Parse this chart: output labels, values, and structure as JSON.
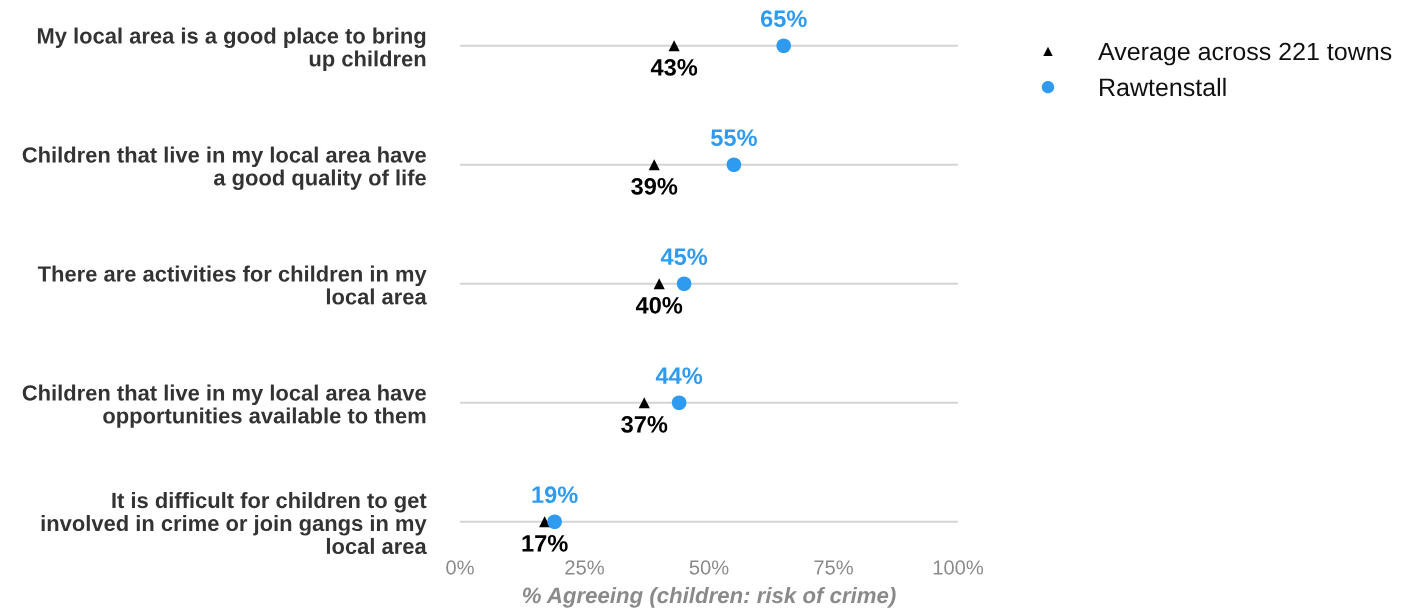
{
  "chart_data": {
    "type": "scatter",
    "orientation": "horizontal",
    "categories": [
      "My local area is a good place to bring\nup children",
      "Children that live in my local area have\na good quality of life",
      "There are activities for children in my\nlocal area",
      "Children that live in my local area have\nopportunities available to them",
      "It is difficult for children to get\ninvolved in crime or join gangs in my\nlocal area"
    ],
    "series": [
      {
        "name": "Average across 221 towns",
        "color": "#000000",
        "marker": "triangle",
        "values": [
          43,
          39,
          40,
          37,
          17
        ],
        "value_labels": [
          "43%",
          "39%",
          "40%",
          "37%",
          "17%"
        ]
      },
      {
        "name": "Rawtenstall",
        "color": "#2e9bf0",
        "marker": "circle",
        "values": [
          65,
          55,
          45,
          44,
          19
        ],
        "value_labels": [
          "65%",
          "55%",
          "45%",
          "44%",
          "19%"
        ]
      }
    ],
    "xlabel": "% Agreeing (children: risk of crime)",
    "xlim": [
      0,
      100
    ],
    "xticks": [
      {
        "value": 0,
        "label": "0%"
      },
      {
        "value": 25,
        "label": "25%"
      },
      {
        "value": 50,
        "label": "50%"
      },
      {
        "value": 75,
        "label": "75%"
      },
      {
        "value": 100,
        "label": "100%"
      }
    ],
    "grid": "y",
    "legend": "top right"
  }
}
